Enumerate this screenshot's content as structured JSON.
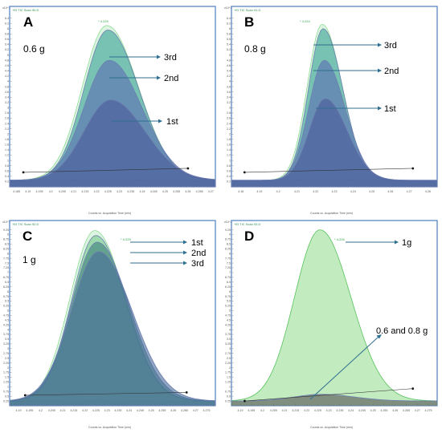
{
  "panels": [
    {
      "letter": "A",
      "mass_label": "0.6 g",
      "header": "+EI TIC Scan 90.D",
      "peak_label": "* 4.225",
      "y_exponent": "x10^7",
      "x_axis_label": "Counts vs. Acquisition Time (min)",
      "y_ticks": [
        "0.2",
        "0.4",
        "0.6",
        "0.8",
        "1",
        "1.2",
        "1.4",
        "1.6",
        "1.8",
        "2",
        "2.2",
        "2.4",
        "2.6",
        "2.8",
        "3",
        "3.2",
        "3.4",
        "3.6",
        "3.8",
        "4",
        "4.2",
        "4.4",
        "4.6",
        "4.8",
        "5",
        "5.2",
        "5.4",
        "5.6",
        "5.8",
        "6",
        "6.2",
        "6.4"
      ],
      "x_ticks": [
        "4.185",
        "4.19",
        "4.195",
        "4.2",
        "4.205",
        "4.21",
        "4.215",
        "4.22",
        "4.225",
        "4.23",
        "4.235",
        "4.24",
        "4.245",
        "4.25",
        "4.255",
        "4.26",
        "4.265",
        "4.27"
      ],
      "annotations": [
        {
          "text": "3rd"
        },
        {
          "text": "2nd"
        },
        {
          "text": "1st"
        }
      ]
    },
    {
      "letter": "B",
      "mass_label": "0.8 g",
      "header": "+EI TIC Scan 91.D",
      "peak_label": "* 4.224",
      "y_exponent": "x10^7",
      "x_axis_label": "Counts vs. Acquisition Time (min)",
      "y_ticks": [
        "0.2",
        "0.4",
        "0.6",
        "0.8",
        "1",
        "1.2",
        "1.4",
        "1.6",
        "1.8",
        "2",
        "2.2",
        "2.4",
        "2.6",
        "2.8",
        "3",
        "3.2",
        "3.4",
        "3.6",
        "3.8",
        "4",
        "4.2",
        "4.4",
        "4.6",
        "4.8",
        "5",
        "5.2",
        "5.4",
        "5.6",
        "5.8",
        "6",
        "6.2",
        "6.4"
      ],
      "x_ticks": [
        "4.18",
        "4.19",
        "4.2",
        "4.21",
        "4.22",
        "4.23",
        "4.24",
        "4.25",
        "4.26",
        "4.27",
        "4.28"
      ],
      "annotations": [
        {
          "text": "3rd"
        },
        {
          "text": "2nd"
        },
        {
          "text": "1st"
        }
      ]
    },
    {
      "letter": "C",
      "mass_label": "1 g",
      "header": "+EI TIC Scan 92.D",
      "peak_label": "* 4.225",
      "y_exponent": "x10^7",
      "x_axis_label": "Counts vs. Acquisition Time (min)",
      "y_ticks": [
        "0.25",
        "0.5",
        "0.75",
        "1",
        "1.25",
        "1.5",
        "1.75",
        "2",
        "2.25",
        "2.5",
        "2.75",
        "3",
        "3.25",
        "3.5",
        "3.75",
        "4",
        "4.25",
        "4.5",
        "4.75",
        "5",
        "5.25",
        "5.5",
        "5.75",
        "6",
        "6.25",
        "6.5",
        "6.75",
        "7",
        "7.25",
        "7.5",
        "7.75",
        "8",
        "8.25",
        "8.5",
        "8.75",
        "9",
        "9.25"
      ],
      "x_ticks": [
        "4.19",
        "4.195",
        "4.2",
        "4.205",
        "4.21",
        "4.215",
        "4.22",
        "4.225",
        "4.23",
        "4.235",
        "4.24",
        "4.245",
        "4.25",
        "4.255",
        "4.26",
        "4.265",
        "4.27",
        "4.275"
      ],
      "annotations": [
        {
          "text": "1st"
        },
        {
          "text": "2nd"
        },
        {
          "text": "3rd"
        }
      ]
    },
    {
      "letter": "D",
      "mass_label": "",
      "header": "+EI TIC Scan 93.D",
      "peak_label": "* 4.226",
      "y_exponent": "x10^7",
      "x_axis_label": "Counts vs. Acquisition Time (min)",
      "y_ticks": [
        "0.25",
        "0.5",
        "0.75",
        "1",
        "1.25",
        "1.5",
        "1.75",
        "2",
        "2.25",
        "2.5",
        "2.75",
        "3",
        "3.25",
        "3.5",
        "3.75",
        "4",
        "4.25",
        "4.5",
        "4.75",
        "5",
        "5.25",
        "5.5",
        "5.75",
        "6",
        "6.25",
        "6.5",
        "6.75",
        "7",
        "7.25",
        "7.5",
        "7.75",
        "8",
        "8.25",
        "8.5",
        "8.75",
        "9",
        "9.25"
      ],
      "x_ticks": [
        "4.19",
        "4.195",
        "4.2",
        "4.205",
        "4.21",
        "4.215",
        "4.22",
        "4.225",
        "4.23",
        "4.235",
        "4.24",
        "4.245",
        "4.25",
        "4.255",
        "4.26",
        "4.265",
        "4.27",
        "4.275"
      ],
      "annotations": [
        {
          "text": "1g"
        },
        {
          "text": "0.6 and 0.8 g"
        }
      ]
    }
  ],
  "chart_data": [
    {
      "type": "area",
      "panel": "A",
      "xlabel": "Counts vs. Acquisition Time (min)",
      "ylabel": "x10^7",
      "xlim": [
        4.182,
        4.272
      ],
      "ylim": [
        0,
        6.6
      ],
      "peak_x": 4.225,
      "series": [
        {
          "name": "3rd",
          "peak_y": 5.7,
          "color": "#3aa39a"
        },
        {
          "name": "2nd",
          "peak_y": 4.55,
          "color": "#5e6fb5"
        },
        {
          "name": "1st",
          "peak_y": 3.05,
          "color": "#4a5a9a"
        }
      ]
    },
    {
      "type": "area",
      "panel": "B",
      "xlabel": "Counts vs. Acquisition Time (min)",
      "ylabel": "x10^7",
      "xlim": [
        4.175,
        4.285
      ],
      "ylim": [
        0,
        6.6
      ],
      "peak_x": 4.224,
      "series": [
        {
          "name": "3rd",
          "peak_y": 5.75,
          "color": "#3aa39a"
        },
        {
          "name": "2nd",
          "peak_y": 4.55,
          "color": "#5e6fb5"
        },
        {
          "name": "1st",
          "peak_y": 3.1,
          "color": "#4a5a9a"
        }
      ]
    },
    {
      "type": "area",
      "panel": "C",
      "xlabel": "Counts vs. Acquisition Time (min)",
      "ylabel": "x10^7",
      "xlim": [
        4.186,
        4.279
      ],
      "ylim": [
        0,
        9.4
      ],
      "peak_x": 4.225,
      "series": [
        {
          "name": "1st",
          "peak_y": 8.7,
          "color": "#79c98f"
        },
        {
          "name": "2nd",
          "peak_y": 8.35,
          "color": "#3f7f7d"
        },
        {
          "name": "3rd",
          "peak_y": 7.85,
          "color": "#4a6d9c"
        }
      ]
    },
    {
      "type": "area",
      "panel": "D",
      "xlabel": "Counts vs. Acquisition Time (min)",
      "ylabel": "x10^7",
      "xlim": [
        4.186,
        4.279
      ],
      "ylim": [
        0,
        9.4
      ],
      "peak_x": 4.226,
      "series": [
        {
          "name": "1g",
          "peak_y": 9.0,
          "color": "#8fdb8c"
        },
        {
          "name": "0.6 and 0.8 g",
          "peak_y": 0.35,
          "color": "#555555"
        }
      ]
    }
  ]
}
